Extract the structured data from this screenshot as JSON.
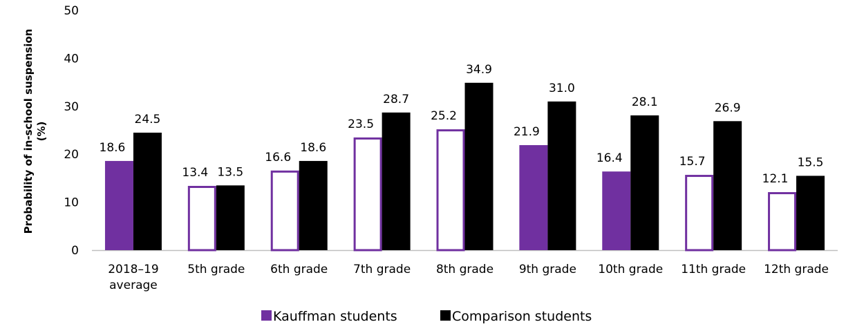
{
  "chart_data": {
    "type": "bar",
    "ylabel": "Probability of in-school suspension (%)",
    "ylabel_lines": [
      "Probability of in-school suspension",
      "(%)"
    ],
    "ylim": [
      0,
      50
    ],
    "yticks": [
      0,
      10,
      20,
      30,
      40,
      50
    ],
    "grid": false,
    "legend_position": "bottom",
    "categories": [
      [
        "2018–19",
        "average"
      ],
      [
        "5th grade"
      ],
      [
        "6th grade"
      ],
      [
        "7th grade"
      ],
      [
        "8th grade"
      ],
      [
        "9th grade"
      ],
      [
        "10th grade"
      ],
      [
        "11th grade"
      ],
      [
        "12th grade"
      ]
    ],
    "series": [
      {
        "name": "Kauffman students",
        "color": "#7030a0",
        "values": [
          18.6,
          13.4,
          16.6,
          23.5,
          25.2,
          21.9,
          16.4,
          15.7,
          12.1
        ],
        "labels": [
          "18.6",
          "13.4",
          "16.6",
          "23.5",
          "25.2",
          "21.9",
          "16.4",
          "15.7",
          "12.1"
        ],
        "filled": [
          true,
          false,
          false,
          false,
          false,
          true,
          true,
          false,
          false
        ]
      },
      {
        "name": "Comparison students",
        "color": "#000000",
        "values": [
          24.5,
          13.5,
          18.6,
          28.7,
          34.9,
          31.0,
          28.1,
          26.9,
          15.5
        ],
        "labels": [
          "24.5",
          "13.5",
          "18.6",
          "28.7",
          "34.9",
          "31.0",
          "28.1",
          "26.9",
          "15.5"
        ]
      }
    ]
  }
}
